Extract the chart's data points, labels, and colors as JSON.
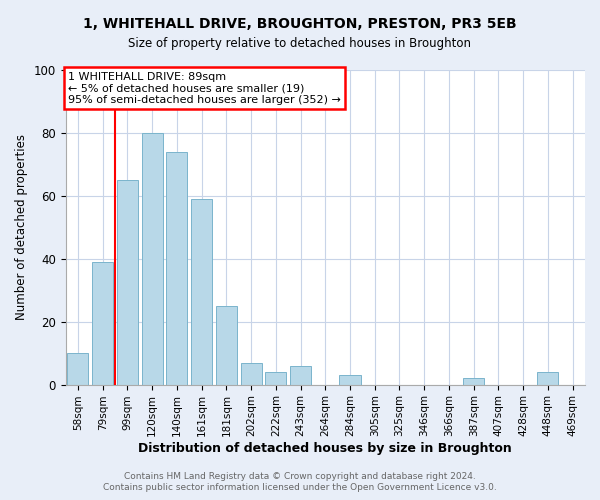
{
  "title": "1, WHITEHALL DRIVE, BROUGHTON, PRESTON, PR3 5EB",
  "subtitle": "Size of property relative to detached houses in Broughton",
  "xlabel": "Distribution of detached houses by size in Broughton",
  "ylabel": "Number of detached properties",
  "bar_color": "#b8d8e8",
  "bar_edge_color": "#7ab4cc",
  "categories": [
    "58sqm",
    "79sqm",
    "99sqm",
    "120sqm",
    "140sqm",
    "161sqm",
    "181sqm",
    "202sqm",
    "222sqm",
    "243sqm",
    "264sqm",
    "284sqm",
    "305sqm",
    "325sqm",
    "346sqm",
    "366sqm",
    "387sqm",
    "407sqm",
    "428sqm",
    "448sqm",
    "469sqm"
  ],
  "values": [
    10,
    39,
    65,
    80,
    74,
    59,
    25,
    7,
    4,
    6,
    0,
    3,
    0,
    0,
    0,
    0,
    2,
    0,
    0,
    4,
    0
  ],
  "ylim": [
    0,
    100
  ],
  "red_line_x": 1.5,
  "annotation_title": "1 WHITEHALL DRIVE: 89sqm",
  "annotation_line1": "← 5% of detached houses are smaller (19)",
  "annotation_line2": "95% of semi-detached houses are larger (352) →",
  "footer1": "Contains HM Land Registry data © Crown copyright and database right 2024.",
  "footer2": "Contains public sector information licensed under the Open Government Licence v3.0.",
  "background_color": "#e8eef8",
  "plot_bg_color": "#ffffff",
  "grid_color": "#c8d4e8"
}
